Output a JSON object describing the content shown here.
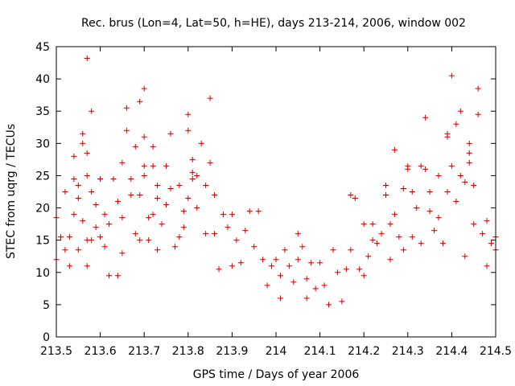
{
  "chart_data": {
    "type": "scatter",
    "title": "Rec. brus (Lon=4, Lat=50, h=HE), days 213-214, 2006, window 002",
    "xlabel": "GPS time / Days of year 2006",
    "ylabel": "STEC from uqrg / TECUs",
    "xlim": [
      213.5,
      214.5
    ],
    "ylim": [
      0,
      45
    ],
    "xticks": [
      213.5,
      213.6,
      213.7,
      213.8,
      213.9,
      214,
      214.1,
      214.2,
      214.3,
      214.4,
      214.5
    ],
    "xtick_labels": [
      "213.5",
      "213.6",
      "213.7",
      "213.8",
      "213.9",
      "214",
      "214.1",
      "214.2",
      "214.3",
      "214.4",
      "214.5"
    ],
    "yticks": [
      0,
      5,
      10,
      15,
      20,
      25,
      30,
      35,
      40,
      45
    ],
    "ytick_labels": [
      "0",
      "5",
      "10",
      "15",
      "20",
      "25",
      "30",
      "35",
      "40",
      "45"
    ],
    "grid": false,
    "marker": "plus",
    "color": "#d40000",
    "series": [
      {
        "points": [
          [
            213.5,
            18.5
          ],
          [
            213.5,
            12.0
          ],
          [
            213.51,
            15.5
          ],
          [
            213.52,
            22.5
          ],
          [
            213.52,
            13.5
          ],
          [
            213.53,
            15.5
          ],
          [
            213.53,
            11.0
          ],
          [
            213.54,
            28.0
          ],
          [
            213.54,
            24.5
          ],
          [
            213.54,
            19.0
          ],
          [
            213.55,
            23.5
          ],
          [
            213.55,
            21.5
          ],
          [
            213.55,
            13.5
          ],
          [
            213.56,
            31.5
          ],
          [
            213.56,
            30.0
          ],
          [
            213.56,
            18.0
          ],
          [
            213.57,
            43.2
          ],
          [
            213.57,
            28.5
          ],
          [
            213.57,
            25.0
          ],
          [
            213.57,
            15.0
          ],
          [
            213.57,
            11.0
          ],
          [
            213.58,
            35.0
          ],
          [
            213.58,
            22.5
          ],
          [
            213.58,
            15.0
          ],
          [
            213.59,
            20.5
          ],
          [
            213.59,
            17.0
          ],
          [
            213.6,
            24.5
          ],
          [
            213.6,
            15.5
          ],
          [
            213.61,
            19.0
          ],
          [
            213.61,
            14.0
          ],
          [
            213.62,
            17.5
          ],
          [
            213.62,
            9.5
          ],
          [
            213.63,
            24.5
          ],
          [
            213.64,
            21.0
          ],
          [
            213.64,
            9.5
          ],
          [
            213.65,
            27.0
          ],
          [
            213.65,
            18.5
          ],
          [
            213.65,
            13.0
          ],
          [
            213.66,
            35.5
          ],
          [
            213.66,
            32.0
          ],
          [
            213.67,
            24.5
          ],
          [
            213.67,
            22.0
          ],
          [
            213.68,
            29.5
          ],
          [
            213.68,
            16.0
          ],
          [
            213.69,
            36.5
          ],
          [
            213.69,
            22.0
          ],
          [
            213.69,
            15.0
          ],
          [
            213.7,
            38.5
          ],
          [
            213.7,
            31.0
          ],
          [
            213.7,
            26.5
          ],
          [
            213.7,
            25.0
          ],
          [
            213.71,
            18.5
          ],
          [
            213.71,
            15.0
          ],
          [
            213.72,
            29.5
          ],
          [
            213.72,
            26.5
          ],
          [
            213.72,
            19.0
          ],
          [
            213.73,
            23.5
          ],
          [
            213.73,
            21.5
          ],
          [
            213.73,
            13.5
          ],
          [
            213.74,
            17.5
          ],
          [
            213.75,
            26.5
          ],
          [
            213.75,
            20.5
          ],
          [
            213.76,
            31.5
          ],
          [
            213.76,
            23.0
          ],
          [
            213.77,
            14.0
          ],
          [
            213.78,
            23.5
          ],
          [
            213.78,
            15.5
          ],
          [
            213.79,
            19.5
          ],
          [
            213.79,
            17.0
          ],
          [
            213.8,
            34.5
          ],
          [
            213.8,
            32.0
          ],
          [
            213.8,
            21.5
          ],
          [
            213.81,
            27.5
          ],
          [
            213.81,
            25.5
          ],
          [
            213.81,
            24.5
          ],
          [
            213.82,
            25.0
          ],
          [
            213.82,
            20.0
          ],
          [
            213.83,
            30.0
          ],
          [
            213.84,
            23.5
          ],
          [
            213.84,
            16.0
          ],
          [
            213.85,
            37.0
          ],
          [
            213.85,
            27.0
          ],
          [
            213.86,
            22.0
          ],
          [
            213.86,
            16.0
          ],
          [
            213.87,
            10.5
          ],
          [
            213.88,
            19.0
          ],
          [
            213.89,
            17.0
          ],
          [
            213.9,
            19.0
          ],
          [
            213.9,
            11.0
          ],
          [
            213.91,
            15.0
          ],
          [
            213.92,
            11.5
          ],
          [
            213.93,
            16.5
          ],
          [
            213.94,
            19.5
          ],
          [
            213.95,
            14.0
          ],
          [
            213.96,
            19.5
          ],
          [
            213.97,
            12.0
          ],
          [
            213.98,
            8.0
          ],
          [
            213.99,
            11.0
          ],
          [
            214.0,
            12.0
          ],
          [
            214.01,
            9.5
          ],
          [
            214.01,
            6.0
          ],
          [
            214.02,
            13.5
          ],
          [
            214.03,
            11.0
          ],
          [
            214.04,
            8.5
          ],
          [
            214.05,
            12.0
          ],
          [
            214.05,
            16.0
          ],
          [
            214.06,
            14.0
          ],
          [
            214.07,
            9.0
          ],
          [
            214.07,
            6.0
          ],
          [
            214.08,
            11.5
          ],
          [
            214.09,
            7.5
          ],
          [
            214.1,
            11.5
          ],
          [
            214.11,
            8.0
          ],
          [
            214.12,
            5.0
          ],
          [
            214.13,
            13.5
          ],
          [
            214.14,
            10.0
          ],
          [
            214.15,
            5.5
          ],
          [
            214.16,
            10.5
          ],
          [
            214.17,
            13.5
          ],
          [
            214.17,
            22.0
          ],
          [
            214.18,
            21.5
          ],
          [
            214.19,
            10.5
          ],
          [
            214.2,
            9.5
          ],
          [
            214.2,
            17.5
          ],
          [
            214.21,
            12.5
          ],
          [
            214.22,
            15.0
          ],
          [
            214.22,
            17.5
          ],
          [
            214.23,
            14.5
          ],
          [
            214.24,
            16.0
          ],
          [
            214.25,
            23.5
          ],
          [
            214.25,
            22.0
          ],
          [
            214.26,
            12.0
          ],
          [
            214.26,
            17.5
          ],
          [
            214.27,
            19.0
          ],
          [
            214.27,
            29.0
          ],
          [
            214.28,
            15.5
          ],
          [
            214.29,
            23.0
          ],
          [
            214.29,
            13.5
          ],
          [
            214.3,
            26.5
          ],
          [
            214.3,
            26.0
          ],
          [
            214.31,
            22.5
          ],
          [
            214.31,
            15.5
          ],
          [
            214.32,
            20.0
          ],
          [
            214.33,
            26.5
          ],
          [
            214.33,
            14.5
          ],
          [
            214.34,
            34.0
          ],
          [
            214.34,
            26.0
          ],
          [
            214.35,
            22.5
          ],
          [
            214.35,
            19.5
          ],
          [
            214.36,
            16.5
          ],
          [
            214.37,
            25.0
          ],
          [
            214.37,
            18.5
          ],
          [
            214.38,
            14.5
          ],
          [
            214.39,
            31.5
          ],
          [
            214.39,
            31.0
          ],
          [
            214.39,
            22.5
          ],
          [
            214.4,
            40.5
          ],
          [
            214.4,
            26.5
          ],
          [
            214.41,
            33.0
          ],
          [
            214.41,
            21.0
          ],
          [
            214.42,
            35.0
          ],
          [
            214.42,
            25.0
          ],
          [
            214.43,
            24.0
          ],
          [
            214.43,
            12.5
          ],
          [
            214.44,
            30.0
          ],
          [
            214.44,
            28.5
          ],
          [
            214.44,
            27.0
          ],
          [
            214.45,
            23.5
          ],
          [
            214.45,
            17.5
          ],
          [
            214.46,
            38.5
          ],
          [
            214.46,
            34.5
          ],
          [
            214.47,
            16.0
          ],
          [
            214.48,
            18.0
          ],
          [
            214.48,
            11.0
          ],
          [
            214.49,
            14.5
          ],
          [
            214.5,
            15.5
          ],
          [
            214.5,
            13.5
          ]
        ]
      }
    ]
  }
}
